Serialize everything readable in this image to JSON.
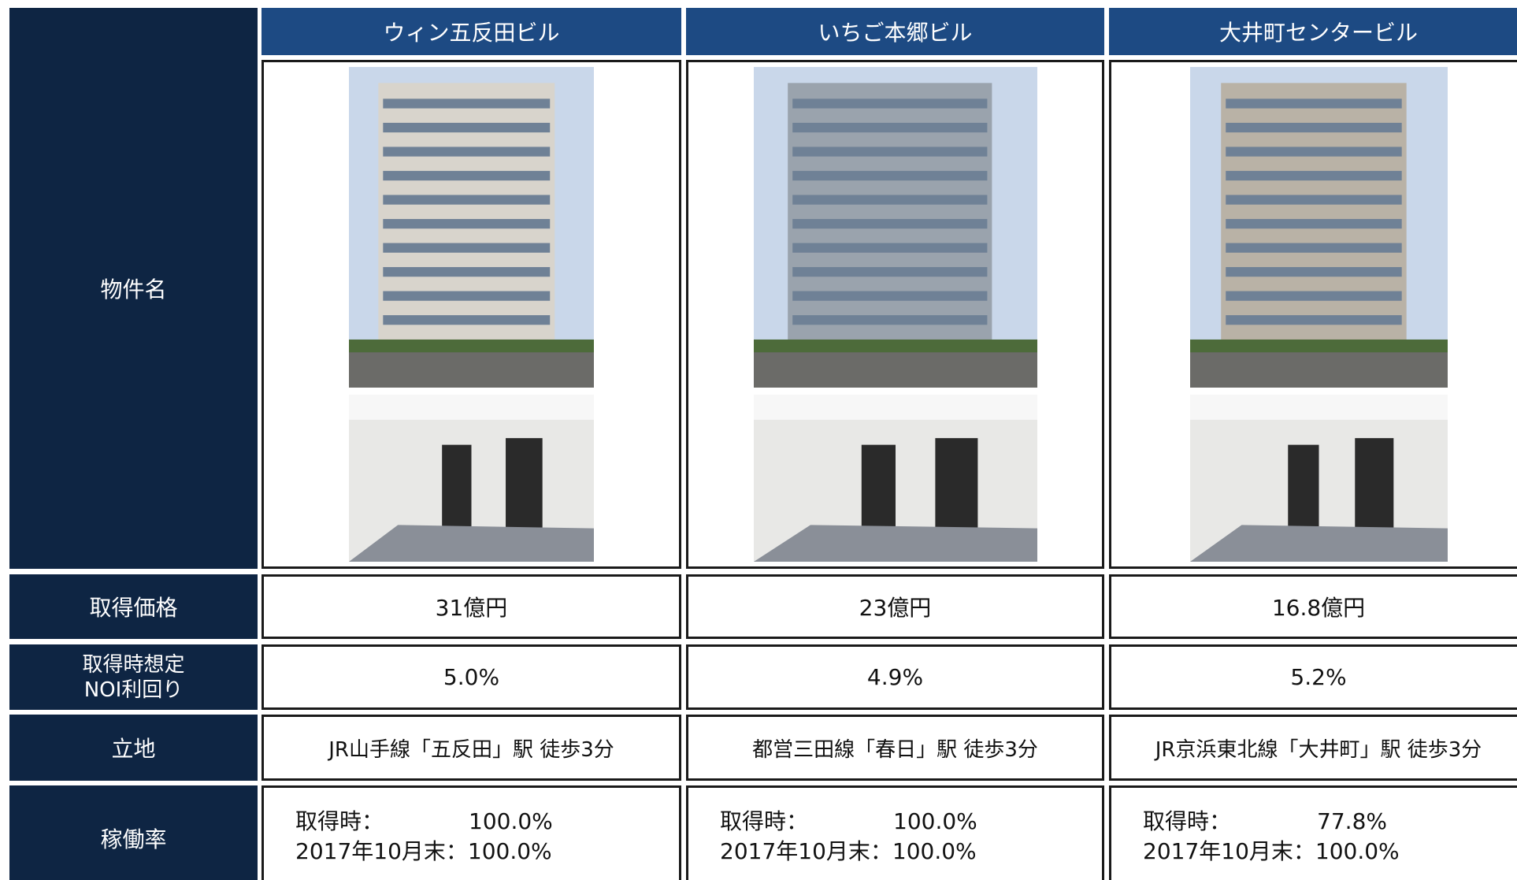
{
  "row_labels": {
    "name": "物件名",
    "price": "取得価格",
    "noi": [
      "取得時想定",
      "NOI利回り"
    ],
    "location": "立地",
    "occupancy": "稼働率"
  },
  "properties": [
    {
      "name": "ウィン五反田ビル",
      "price": "31億円",
      "noi": "5.0%",
      "location": "JR山手線「五反田」駅 徒歩3分",
      "occupancy": {
        "acq_label": "取得時：",
        "acq": "100.0%",
        "oct_label": "2017年10月末：",
        "oct": "100.0%"
      }
    },
    {
      "name": "いちご本郷ビル",
      "price": "23億円",
      "noi": "4.9%",
      "location": "都営三田線「春日」駅 徒歩3分",
      "occupancy": {
        "acq_label": "取得時：",
        "acq": "100.0%",
        "oct_label": "2017年10月末：",
        "oct": "100.0%"
      }
    },
    {
      "name": "大井町センタービル",
      "price": "16.8億円",
      "noi": "5.2%",
      "location": "JR京浜東北線「大井町」駅 徒歩3分",
      "occupancy": {
        "acq_label": "取得時：",
        "acq": "77.8%",
        "oct_label": "2017年10月末：",
        "oct": "100.0%"
      }
    }
  ]
}
